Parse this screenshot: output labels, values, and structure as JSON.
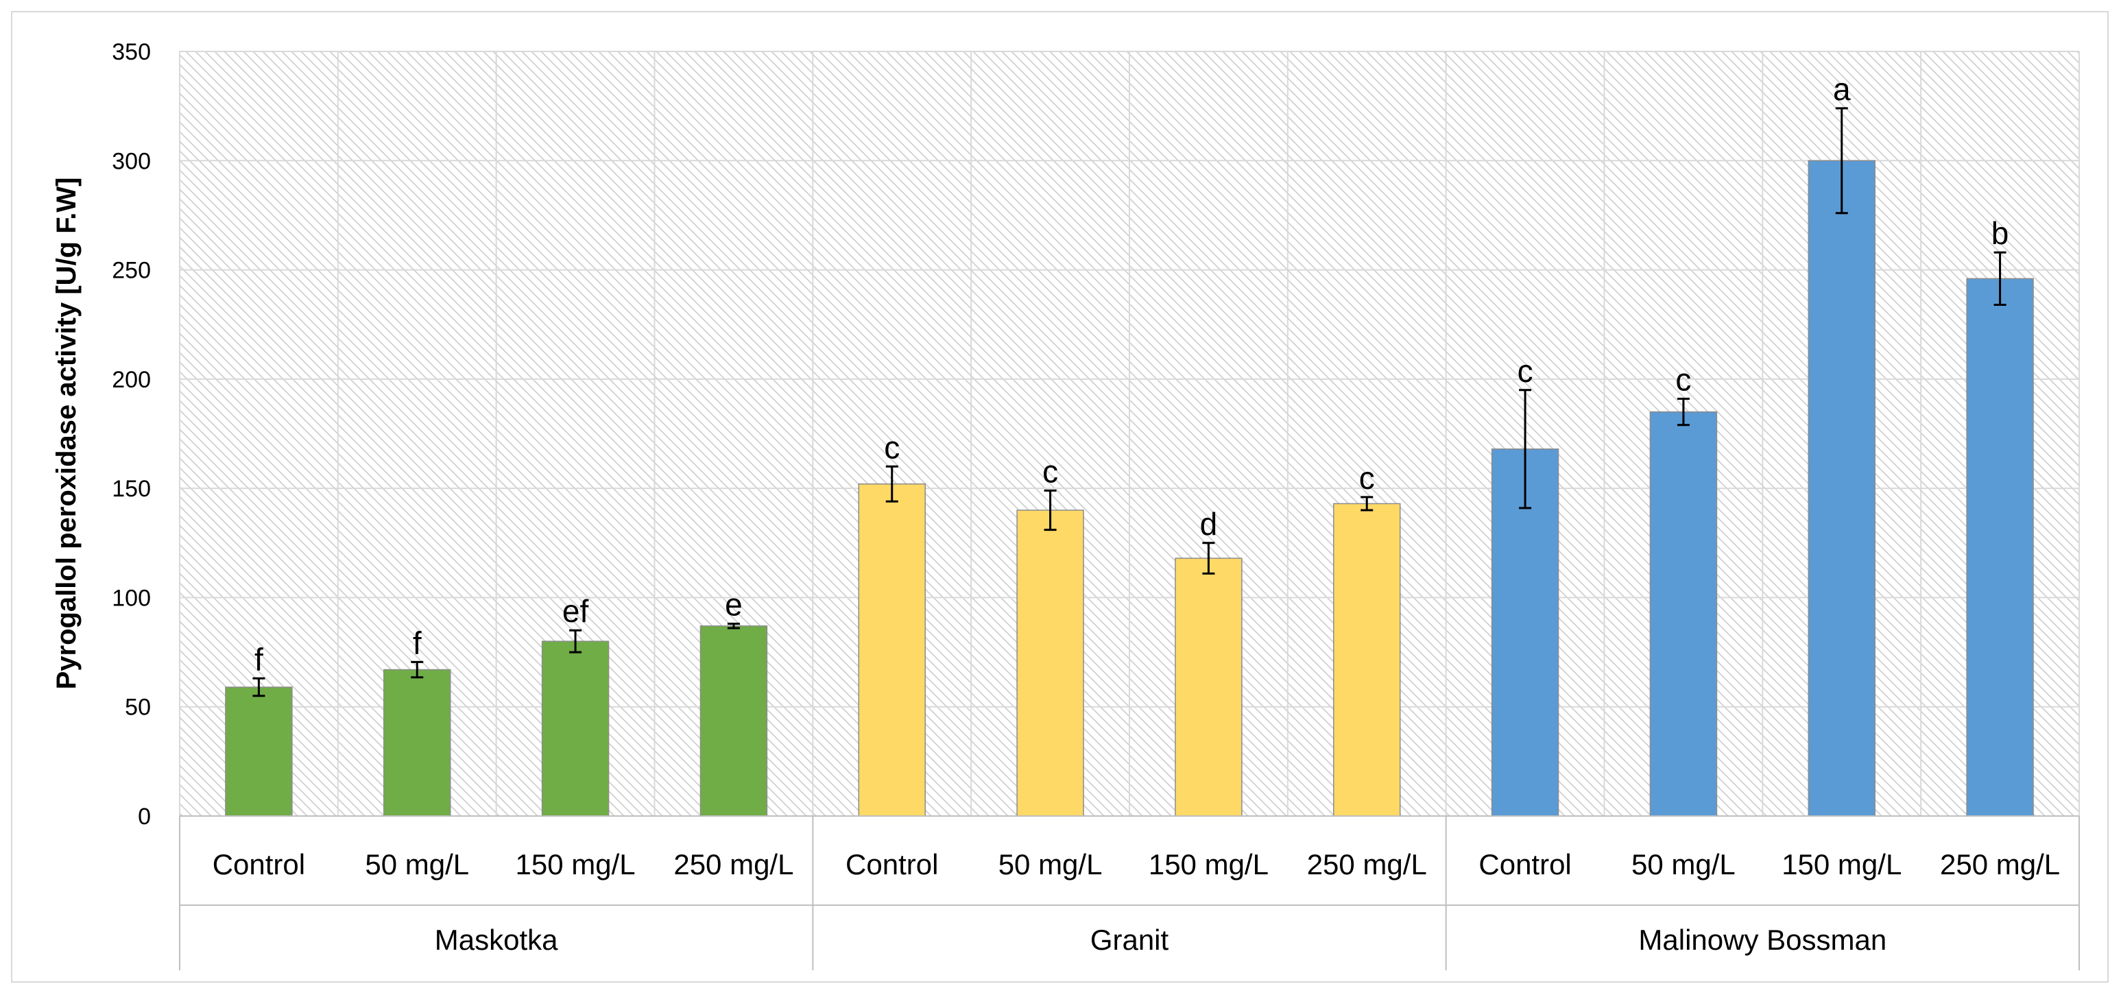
{
  "chart_data": {
    "type": "bar",
    "title": "",
    "ylabel": "Pyrogallol peroxidase activity [U/g F.W]",
    "xlabel": "",
    "ylim": [
      0,
      350
    ],
    "yticks": [
      "0",
      "50",
      "100",
      "150",
      "200",
      "250",
      "300",
      "350"
    ],
    "grid": true,
    "legend": "none",
    "groups": [
      {
        "name": "Maskotka",
        "color": "#70ad47",
        "categories": [
          "Control",
          "50 mg/L",
          "150 mg/L",
          "250 mg/L"
        ],
        "values": [
          59,
          67,
          80,
          87
        ],
        "errors": [
          4,
          3.5,
          5,
          1
        ],
        "labels": [
          "f",
          "f",
          "ef",
          "e"
        ]
      },
      {
        "name": "Granit",
        "color": "#ffd966",
        "categories": [
          "Control",
          "50 mg/L",
          "150 mg/L",
          "250 mg/L"
        ],
        "values": [
          152,
          140,
          118,
          143
        ],
        "errors": [
          8,
          9,
          7,
          3
        ],
        "labels": [
          "c",
          "c",
          "d",
          "c"
        ]
      },
      {
        "name": "Malinowy Bossman",
        "color": "#5b9bd5",
        "categories": [
          "Control",
          "50 mg/L",
          "150 mg/L",
          "250 mg/L"
        ],
        "values": [
          168,
          185,
          300,
          246
        ],
        "errors": [
          27,
          6,
          24,
          12
        ],
        "labels": [
          "c",
          "c",
          "a",
          "b"
        ]
      }
    ]
  }
}
